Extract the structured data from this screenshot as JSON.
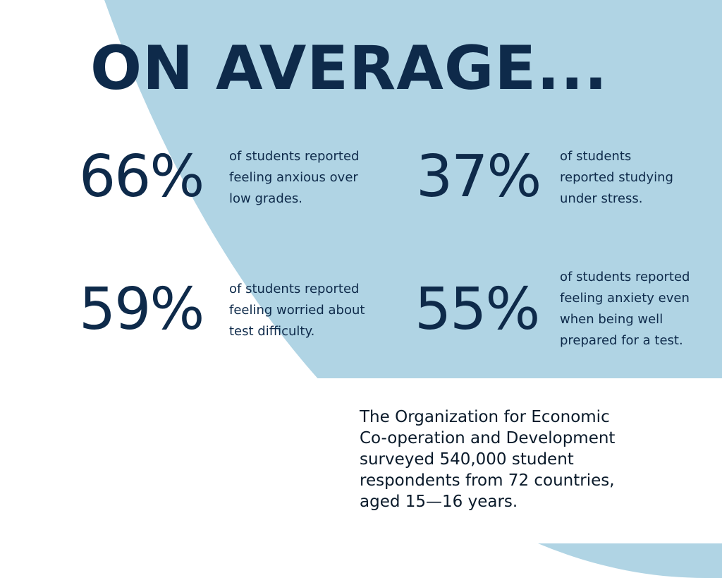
{
  "heading": "ON AVERAGE...",
  "stats": [
    {
      "value": "66%",
      "lines": [
        "of students reported",
        "feeling anxious over",
        "low grades."
      ]
    },
    {
      "value": "37%",
      "lines": [
        "of students",
        "reported studying",
        "under stress."
      ]
    },
    {
      "value": "59%",
      "lines": [
        "of students reported",
        "feeling worried about",
        "test difficulty."
      ]
    },
    {
      "value": "55%",
      "lines": [
        "of students reported",
        "feeling anxiety even",
        "when being well",
        "prepared for a test."
      ]
    }
  ],
  "note": {
    "lines": [
      "The Organization for Economic",
      "Co-operation and Development",
      "surveyed 540,000 student",
      "respondents from 72 countries,",
      "aged 15—16 years."
    ]
  },
  "colors": {
    "background": "#b0d4e4",
    "text": "#0e2a4a",
    "card": "#ffffff"
  }
}
